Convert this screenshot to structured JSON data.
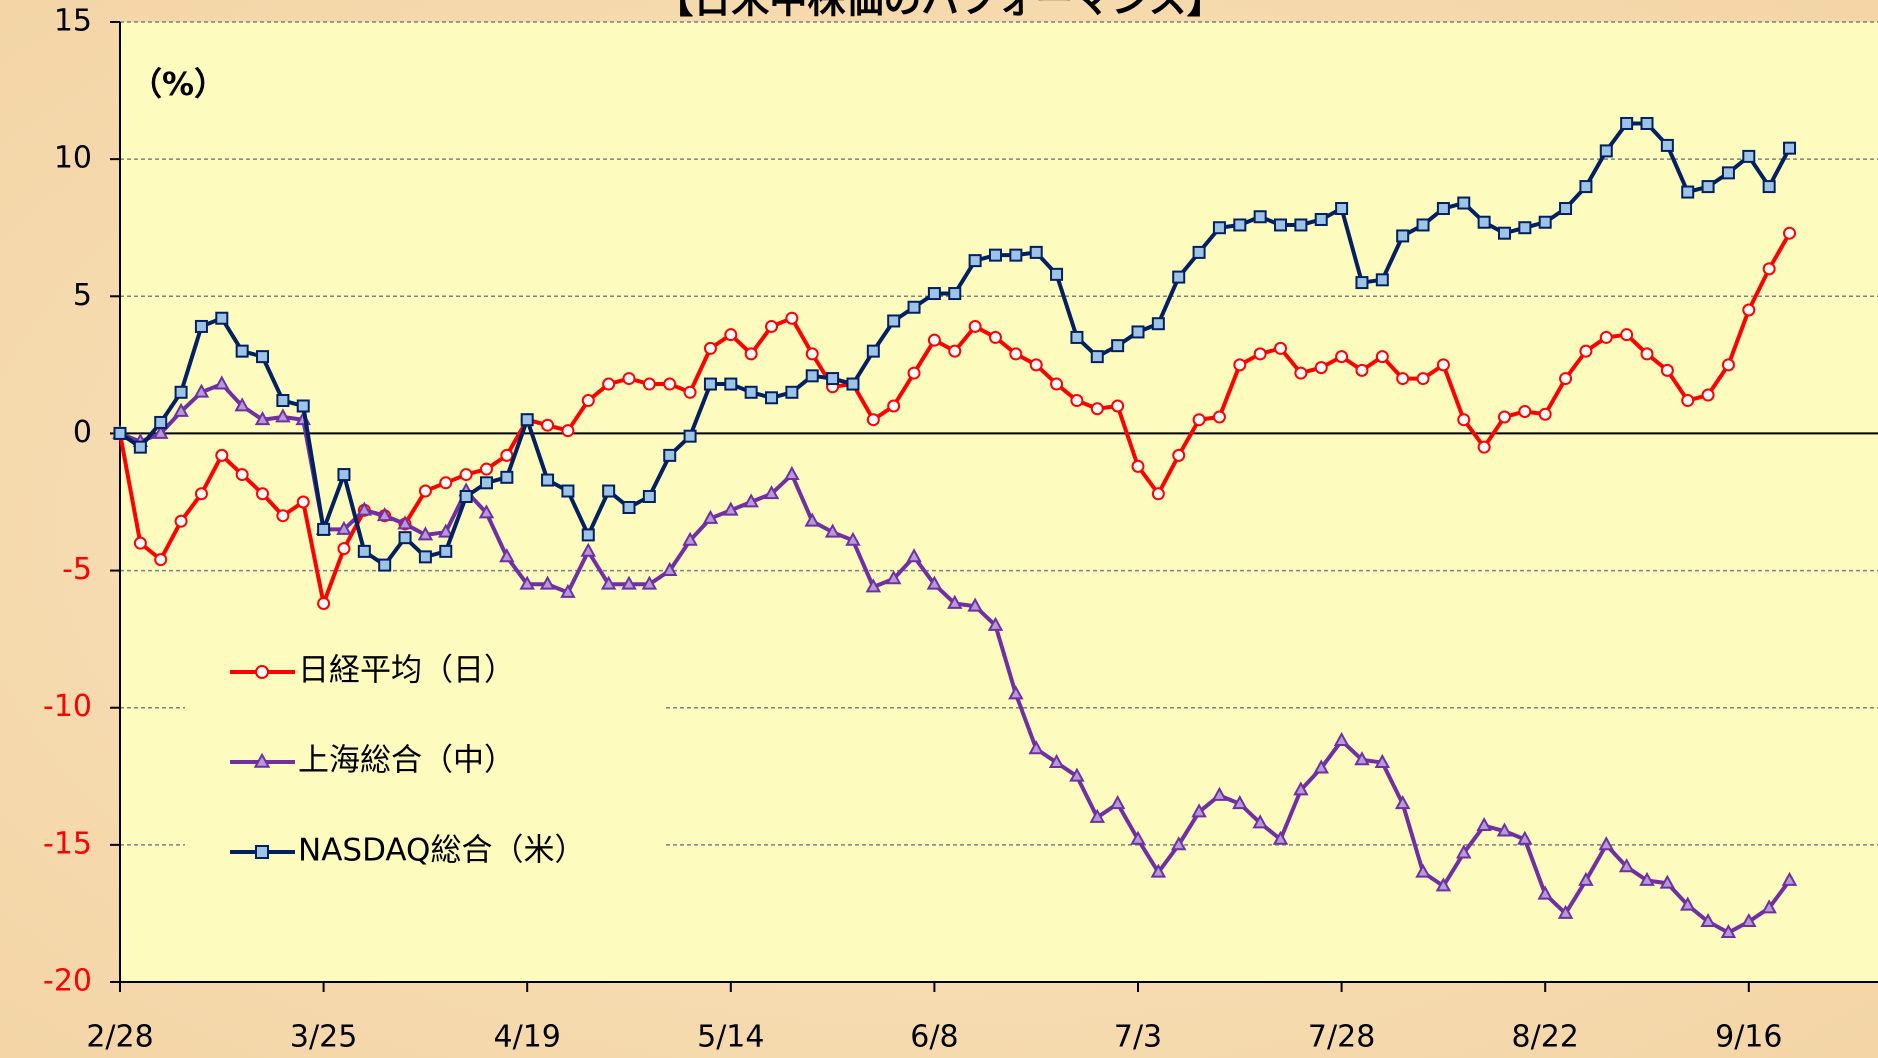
{
  "chart_data": {
    "type": "line",
    "title": "【日米中株価のパフォーマンス】",
    "ylabel": "（%）",
    "ylim": [
      -20,
      15
    ],
    "yticks": [
      -20,
      -15,
      -10,
      -5,
      0,
      5,
      10,
      15
    ],
    "grid": true,
    "legend": "left",
    "categories": [
      "2/28",
      null,
      null,
      null,
      null,
      null,
      null,
      null,
      null,
      null,
      "3/25",
      null,
      null,
      null,
      null,
      null,
      null,
      null,
      null,
      null,
      "4/19",
      null,
      null,
      null,
      null,
      null,
      null,
      null,
      null,
      null,
      "5/14",
      null,
      null,
      null,
      null,
      null,
      null,
      null,
      null,
      null,
      "6/8",
      null,
      null,
      null,
      null,
      null,
      null,
      null,
      null,
      null,
      "7/3",
      null,
      null,
      null,
      null,
      null,
      null,
      null,
      null,
      null,
      "7/28",
      null,
      null,
      null,
      null,
      null,
      null,
      null,
      null,
      null,
      "8/22",
      null,
      null,
      null,
      null,
      null,
      null,
      null,
      null,
      null,
      "9/16",
      null,
      null
    ],
    "series": [
      {
        "name": "日経平均（日）",
        "color": "#ff0000",
        "marker": "circle",
        "marker_fill": "#ffffff",
        "values": [
          0,
          -4,
          -4.6,
          -3.2,
          -2.2,
          -0.8,
          -1.5,
          -2.2,
          -3,
          -2.5,
          -6.2,
          -4.2,
          -2.8,
          -3,
          -3.3,
          -2.1,
          -1.8,
          -1.5,
          -1.3,
          -0.8,
          0.5,
          0.3,
          0.1,
          1.2,
          1.8,
          2,
          1.8,
          1.8,
          1.5,
          3.1,
          3.6,
          2.9,
          3.9,
          4.2,
          2.9,
          1.7,
          1.8,
          0.5,
          1,
          2.2,
          3.4,
          3,
          3.9,
          3.5,
          2.9,
          2.5,
          1.8,
          1.2,
          0.9,
          1,
          -1.2,
          -2.2,
          -0.8,
          0.5,
          0.6,
          2.5,
          2.9,
          3.1,
          2.2,
          2.4,
          2.8,
          2.3,
          2.8,
          2,
          2,
          2.5,
          0.5,
          -0.5,
          0.6,
          0.8,
          0.7,
          2,
          3,
          3.5,
          3.6,
          2.9,
          2.3,
          1.2,
          1.4,
          2.5,
          4.5,
          6,
          7.3
        ]
      },
      {
        "name": "上海総合（中）",
        "color": "#7030a0",
        "marker": "triangle",
        "marker_fill": "#b49ad8",
        "values": [
          0,
          -0.3,
          0,
          0.8,
          1.5,
          1.8,
          1,
          0.5,
          0.6,
          0.5,
          -3.5,
          -3.5,
          -2.8,
          -3,
          -3.3,
          -3.7,
          -3.6,
          -2.1,
          -2.9,
          -4.5,
          -5.5,
          -5.5,
          -5.8,
          -4.3,
          -5.5,
          -5.5,
          -5.5,
          -5,
          -3.9,
          -3.1,
          -2.8,
          -2.5,
          -2.2,
          -1.5,
          -3.2,
          -3.6,
          -3.9,
          -5.6,
          -5.3,
          -4.5,
          -5.5,
          -6.2,
          -6.3,
          -7,
          -9.5,
          -11.5,
          -12,
          -12.5,
          -14,
          -13.5,
          -14.8,
          -16,
          -15,
          -13.8,
          -13.2,
          -13.5,
          -14.2,
          -14.8,
          -13,
          -12.2,
          -11.2,
          -11.9,
          -12,
          -13.5,
          -16,
          -16.5,
          -15.3,
          -14.3,
          -14.5,
          -14.8,
          -16.8,
          -17.5,
          -16.3,
          -15,
          -15.8,
          -16.3,
          -16.4,
          -17.2,
          -17.8,
          -18.2,
          -17.8,
          -17.3,
          -16.3
        ]
      },
      {
        "name": "NASDAQ総合（米）",
        "color": "#002060",
        "marker": "square",
        "marker_fill": "#9dc3e6",
        "values": [
          0,
          -0.5,
          0.4,
          1.5,
          3.9,
          4.2,
          3,
          2.8,
          1.2,
          1,
          -3.5,
          -1.5,
          -4.3,
          -4.8,
          -3.8,
          -4.5,
          -4.3,
          -2.3,
          -1.8,
          -1.6,
          0.5,
          -1.7,
          -2.1,
          -3.7,
          -2.1,
          -2.7,
          -2.3,
          -0.8,
          -0.1,
          1.8,
          1.8,
          1.5,
          1.3,
          1.5,
          2.1,
          2,
          1.8,
          3,
          4.1,
          4.6,
          5.1,
          5.1,
          6.3,
          6.5,
          6.5,
          6.6,
          5.8,
          3.5,
          2.8,
          3.2,
          3.7,
          4,
          5.7,
          6.6,
          7.5,
          7.6,
          7.9,
          7.6,
          7.6,
          7.8,
          8.2,
          5.5,
          5.6,
          7.2,
          7.6,
          8.2,
          8.4,
          7.7,
          7.3,
          7.5,
          7.7,
          8.2,
          9,
          10.3,
          11.3,
          11.3,
          10.5,
          8.8,
          9,
          9.5,
          10.1,
          9,
          10.4
        ]
      }
    ]
  }
}
